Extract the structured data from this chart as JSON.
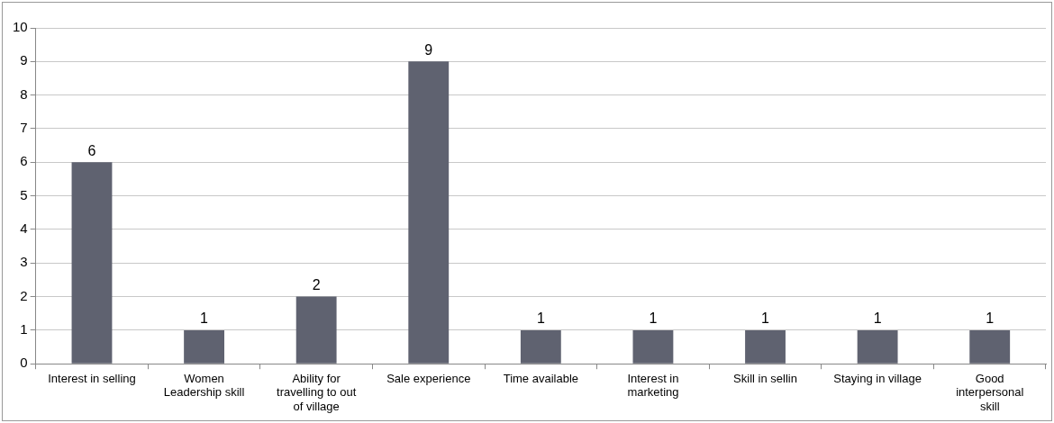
{
  "chart_data": {
    "type": "bar",
    "categories": [
      "Interest in selling",
      "Women Leadership skill",
      "Ability for travelling to out of village",
      "Sale experience",
      "Time available",
      "Interest in marketing",
      "Skill in sellin",
      "Staying in village",
      "Good interpersonal skill"
    ],
    "values": [
      6,
      1,
      2,
      9,
      1,
      1,
      1,
      1,
      1
    ],
    "color": "#5f6270",
    "ylim": [
      0,
      10
    ],
    "yticks": [
      0,
      1,
      2,
      3,
      4,
      5,
      6,
      7,
      8,
      9,
      10
    ],
    "grid": "y",
    "legend": false,
    "data_labels": true
  }
}
